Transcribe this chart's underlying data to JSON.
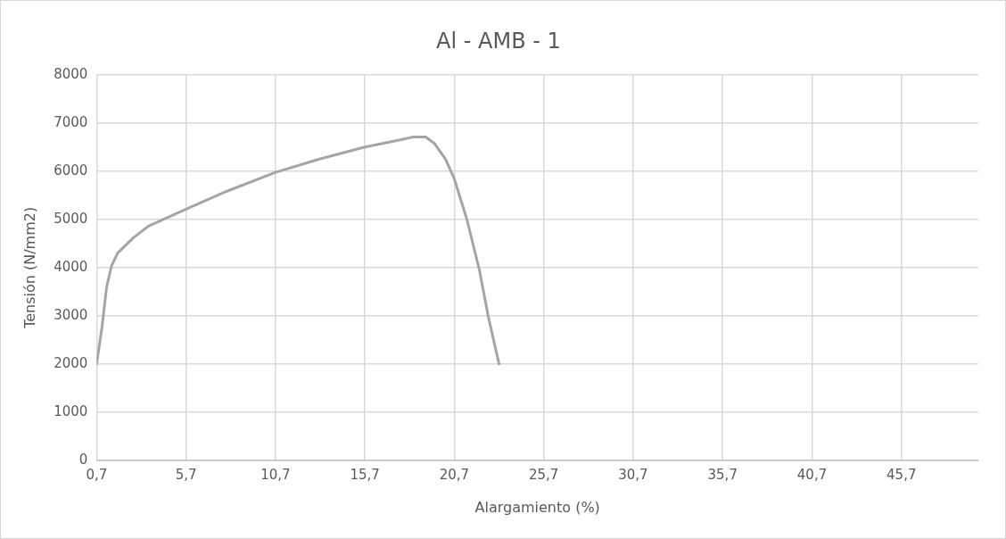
{
  "chart_data": {
    "type": "line",
    "title": "Al - AMB - 1",
    "xlabel": "Alargamiento (%)",
    "ylabel": "Tensión (N/mm2)",
    "xlim": [
      0.7,
      50
    ],
    "xticks": [
      {
        "value": 0.7,
        "label": "0,7"
      },
      {
        "value": 5.7,
        "label": "5,7"
      },
      {
        "value": 10.7,
        "label": "10,7"
      },
      {
        "value": 15.7,
        "label": "15,7"
      },
      {
        "value": 20.7,
        "label": "20,7"
      },
      {
        "value": 25.7,
        "label": "25,7"
      },
      {
        "value": 30.7,
        "label": "30,7"
      },
      {
        "value": 35.7,
        "label": "35,7"
      },
      {
        "value": 40.7,
        "label": "40,7"
      },
      {
        "value": 45.7,
        "label": "45,7"
      }
    ],
    "ylim": [
      0,
      8000
    ],
    "yticks": [
      0,
      1000,
      2000,
      3000,
      4000,
      5000,
      6000,
      7000,
      8000
    ],
    "grid": true,
    "legend": false,
    "marker": "none",
    "line_style": "solid",
    "series": [
      {
        "color": "#a5a5a5",
        "x": [
          0.7,
          1.0,
          1.26,
          1.52,
          1.87,
          2.74,
          3.6,
          5.7,
          7.96,
          10.7,
          13.2,
          15.7,
          17.55,
          18.4,
          19.1,
          19.6,
          20.2,
          20.7,
          21.4,
          22.1,
          22.6,
          23.2
        ],
        "values": [
          2000,
          2770,
          3600,
          4020,
          4300,
          4615,
          4860,
          5210,
          5580,
          5975,
          6255,
          6500,
          6640,
          6710,
          6710,
          6570,
          6255,
          5840,
          5000,
          3950,
          2980,
          2000
        ]
      }
    ]
  }
}
